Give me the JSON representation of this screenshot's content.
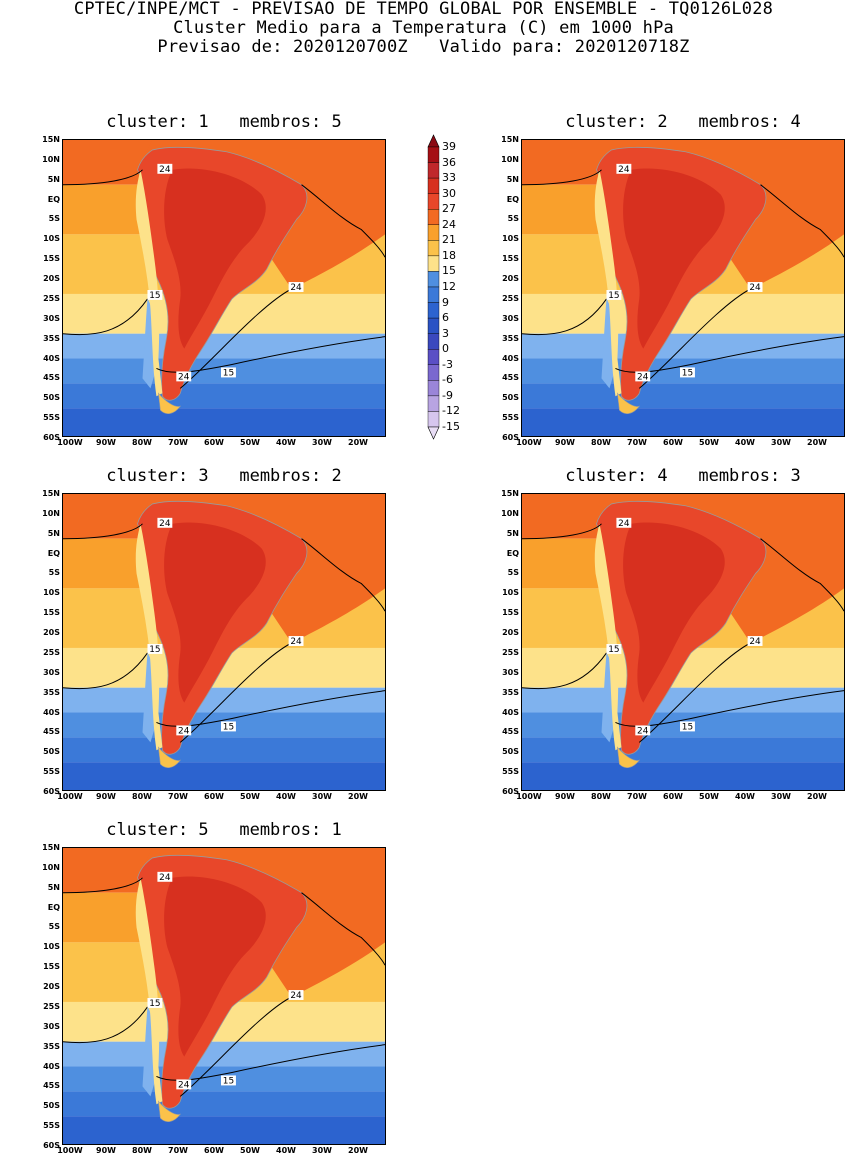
{
  "header": {
    "line1": "CPTEC/INPE/MCT - PREVISAO DE TEMPO GLOBAL POR ENSEMBLE - TQ0126L028",
    "line2": "Cluster Medio para a Temperatura (C) em 1000 hPa",
    "line3": "Previsao de: 2020120700Z   Valido para: 2020120718Z"
  },
  "panels": [
    {
      "cluster_label": "cluster:",
      "cluster": "1",
      "members_label": "membros:",
      "members": "5",
      "contours": [
        {
          "value": "24"
        },
        {
          "value": "24"
        },
        {
          "value": "15"
        },
        {
          "value": "24"
        },
        {
          "value": "15"
        }
      ]
    },
    {
      "cluster_label": "cluster:",
      "cluster": "2",
      "members_label": "membros:",
      "members": "4",
      "contours": [
        {
          "value": "24"
        },
        {
          "value": "24"
        },
        {
          "value": "15"
        },
        {
          "value": "24"
        },
        {
          "value": "15"
        }
      ]
    },
    {
      "cluster_label": "cluster:",
      "cluster": "3",
      "members_label": "membros:",
      "members": "2",
      "contours": [
        {
          "value": "24"
        },
        {
          "value": "24"
        },
        {
          "value": "15"
        },
        {
          "value": "24"
        },
        {
          "value": "15"
        }
      ]
    },
    {
      "cluster_label": "cluster:",
      "cluster": "4",
      "members_label": "membros:",
      "members": "3",
      "contours": [
        {
          "value": "24"
        },
        {
          "value": "24"
        },
        {
          "value": "15"
        },
        {
          "value": "24"
        },
        {
          "value": "15"
        }
      ]
    },
    {
      "cluster_label": "cluster:",
      "cluster": "5",
      "members_label": "membros:",
      "members": "1",
      "contours": [
        {
          "value": "24"
        },
        {
          "value": "24"
        },
        {
          "value": "15"
        },
        {
          "value": "24"
        },
        {
          "value": "15"
        }
      ]
    }
  ],
  "axes": {
    "lat_labels": [
      "15N",
      "10N",
      "5N",
      "EQ",
      "5S",
      "10S",
      "15S",
      "20S",
      "25S",
      "30S",
      "35S",
      "40S",
      "45S",
      "50S",
      "55S",
      "60S"
    ],
    "lon_labels": [
      "100W",
      "90W",
      "80W",
      "70W",
      "60W",
      "50W",
      "40W",
      "30W",
      "20W"
    ]
  },
  "colorbar": {
    "labels": [
      "39",
      "36",
      "33",
      "30",
      "27",
      "24",
      "21",
      "18",
      "15",
      "12",
      "9",
      "6",
      "3",
      "0",
      "-3",
      "-6",
      "-9",
      "-12",
      "-15"
    ],
    "colors": [
      "#a50f15",
      "#c0282b",
      "#d7301f",
      "#e8472a",
      "#f26a22",
      "#f9a02c",
      "#fbc24a",
      "#fde28a",
      "#4f8fe0",
      "#3b79d8",
      "#2c63cf",
      "#2a52c4",
      "#3a48be",
      "#5a4fc5",
      "#7a68cf",
      "#9a85d8",
      "#b8a4e2",
      "#d6c6ee"
    ],
    "top_color": "#8b0a14",
    "bottom_color": "#e8ddf5"
  },
  "map_colors": {
    "band_15_18": "#fde28a",
    "band_18_21": "#fbc24a",
    "band_21_24": "#f9a02c",
    "band_24_27": "#f26a22",
    "band_27_30": "#e8472a",
    "band_30_33": "#d7301f",
    "cold_12_15": "#7fb2ee",
    "cold_9_12": "#4f8fe0",
    "cold_6_9": "#3b79d8",
    "cold_3_6": "#2c63cf"
  }
}
